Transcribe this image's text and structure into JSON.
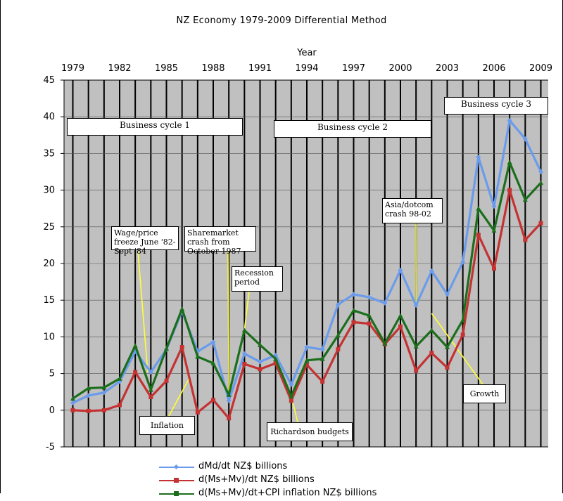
{
  "chart_data": {
    "type": "line",
    "title": "NZ Economy 1979-2009 Differential Method",
    "xlabel": "Year",
    "ylabel": "",
    "xlim": [
      1979,
      2009
    ],
    "ylim": [
      -5,
      45
    ],
    "x_ticks": [
      1979,
      1982,
      1985,
      1988,
      1991,
      1994,
      1997,
      2000,
      2003,
      2006,
      2009
    ],
    "y_ticks": [
      -5,
      0,
      5,
      10,
      15,
      20,
      25,
      30,
      35,
      40,
      45
    ],
    "grid": true,
    "legend_position": "bottom",
    "x": [
      1979,
      1980,
      1981,
      1982,
      1983,
      1984,
      1985,
      1986,
      1987,
      1988,
      1989,
      1990,
      1991,
      1992,
      1993,
      1994,
      1995,
      1996,
      1997,
      1998,
      1999,
      2000,
      2001,
      2002,
      2003,
      2004,
      2005,
      2006,
      2007,
      2008,
      2009
    ],
    "series": [
      {
        "name": "dMd/dt  NZ$ billions",
        "color": "#6b9bec",
        "values": [
          1.0,
          2.0,
          2.4,
          3.9,
          8.0,
          5.2,
          8.3,
          13.5,
          8.0,
          9.3,
          1.3,
          7.7,
          6.6,
          7.5,
          3.5,
          8.6,
          8.3,
          14.4,
          15.8,
          15.4,
          14.6,
          19.1,
          14.3,
          19.0,
          15.8,
          20.2,
          34.5,
          27.8,
          39.5,
          37.0,
          32.5
        ]
      },
      {
        "name": "d(Ms+Mv)/dt  NZ$ billions",
        "color": "#c43232",
        "values": [
          0.0,
          -0.1,
          0.0,
          0.7,
          5.2,
          1.8,
          4.0,
          8.6,
          -0.3,
          1.4,
          -1.1,
          6.3,
          5.6,
          6.4,
          1.3,
          6.2,
          3.9,
          8.3,
          12.0,
          11.8,
          9.0,
          11.4,
          5.4,
          7.8,
          5.8,
          10.3,
          23.9,
          19.3,
          30.0,
          23.2,
          25.5
        ]
      },
      {
        "name": "d(Ms+Mv)/dt+CPI inflation NZ$ billions",
        "color": "#1b6e1b",
        "values": [
          1.6,
          3.0,
          3.1,
          4.3,
          8.8,
          2.8,
          8.4,
          13.8,
          7.3,
          6.4,
          2.1,
          10.9,
          8.9,
          7.0,
          1.9,
          6.8,
          7.0,
          10.2,
          13.6,
          12.9,
          9.1,
          12.9,
          8.7,
          10.9,
          8.6,
          12.3,
          27.5,
          24.5,
          33.8,
          28.7,
          31.0
        ]
      }
    ],
    "annotations": [
      {
        "text": "Business cycle 1"
      },
      {
        "text": "Business cycle 2"
      },
      {
        "text": "Business cycle 3"
      },
      {
        "text": "Wage/price freeze June '82-Sept '84"
      },
      {
        "text": "Sharemarket crash from October 1987"
      },
      {
        "text": "Recession period"
      },
      {
        "text": "Inflation"
      },
      {
        "text": "Richardson budgets"
      },
      {
        "text": "Asia/dotcom crash  98-02"
      },
      {
        "text": "Growth"
      }
    ]
  }
}
